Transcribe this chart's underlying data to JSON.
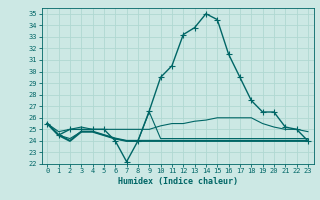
{
  "xlabel": "Humidex (Indice chaleur)",
  "xlim": [
    -0.5,
    23.5
  ],
  "ylim": [
    22,
    35.5
  ],
  "yticks": [
    22,
    23,
    24,
    25,
    26,
    27,
    28,
    29,
    30,
    31,
    32,
    33,
    34,
    35
  ],
  "xticks": [
    0,
    1,
    2,
    3,
    4,
    5,
    6,
    7,
    8,
    9,
    10,
    11,
    12,
    13,
    14,
    15,
    16,
    17,
    18,
    19,
    20,
    21,
    22,
    23
  ],
  "bg_color": "#cce8e4",
  "grid_color": "#b0d8d2",
  "line_color": "#006666",
  "series": [
    {
      "x": [
        0,
        1,
        2,
        3,
        4,
        5,
        6,
        7,
        8,
        9,
        10,
        11,
        12,
        13,
        14,
        15,
        16,
        17,
        18,
        19,
        20,
        21,
        22,
        23
      ],
      "y": [
        25.5,
        24.5,
        25.0,
        25.0,
        25.0,
        25.0,
        24.0,
        22.2,
        24.0,
        26.6,
        29.5,
        30.5,
        33.2,
        33.8,
        35.0,
        34.5,
        31.5,
        29.5,
        27.5,
        26.5,
        26.5,
        25.2,
        25.0,
        24.0
      ],
      "marker": "+",
      "lw": 1.0,
      "ms": 4
    },
    {
      "x": [
        0,
        1,
        2,
        3,
        4,
        5,
        6,
        7,
        8,
        9,
        10,
        11,
        12,
        13,
        14,
        15,
        16,
        17,
        18,
        19,
        20,
        21,
        22,
        23
      ],
      "y": [
        25.5,
        24.8,
        25.0,
        25.2,
        25.0,
        25.0,
        25.0,
        25.0,
        25.0,
        25.0,
        25.3,
        25.5,
        25.5,
        25.7,
        25.8,
        26.0,
        26.0,
        26.0,
        26.0,
        25.5,
        25.2,
        25.0,
        25.0,
        24.8
      ],
      "marker": null,
      "lw": 0.8,
      "ms": 0
    },
    {
      "x": [
        0,
        1,
        2,
        3,
        4,
        5,
        6,
        7,
        8,
        9,
        10,
        11,
        12,
        13,
        14,
        15,
        16,
        17,
        18,
        19,
        20,
        21,
        22,
        23
      ],
      "y": [
        25.5,
        24.5,
        24.2,
        24.8,
        24.8,
        24.5,
        24.2,
        24.0,
        24.0,
        26.5,
        24.2,
        24.2,
        24.2,
        24.2,
        24.2,
        24.2,
        24.2,
        24.2,
        24.2,
        24.2,
        24.2,
        24.2,
        24.2,
        24.2
      ],
      "marker": null,
      "lw": 0.8,
      "ms": 0
    },
    {
      "x": [
        0,
        1,
        2,
        3,
        4,
        5,
        6,
        7,
        8,
        9,
        10,
        11,
        12,
        13,
        14,
        15,
        16,
        17,
        18,
        19,
        20,
        21,
        22,
        23
      ],
      "y": [
        25.5,
        24.5,
        24.0,
        24.8,
        24.8,
        24.5,
        24.2,
        24.0,
        24.0,
        24.0,
        24.0,
        24.0,
        24.0,
        24.0,
        24.0,
        24.0,
        24.0,
        24.0,
        24.0,
        24.0,
        24.0,
        24.0,
        24.0,
        24.0
      ],
      "marker": null,
      "lw": 1.5,
      "ms": 0
    }
  ]
}
